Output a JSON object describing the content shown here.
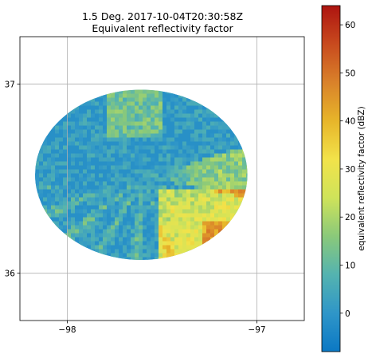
{
  "chart_data": {
    "type": "heatmap",
    "title": "1.5 Deg. 2017-10-04T20:30:58Z",
    "subtitle": "Equivalent reflectivity factor",
    "xlabel": "",
    "ylabel": "",
    "xlim": [
      -98.25,
      -96.75
    ],
    "ylim": [
      35.75,
      37.25
    ],
    "x_ticks": [
      -98,
      -97
    ],
    "x_tick_labels": [
      "−98",
      "−97"
    ],
    "y_ticks": [
      36,
      37
    ],
    "y_tick_labels": [
      "36",
      "37"
    ],
    "grid": true,
    "radar_center": {
      "lon": -97.61,
      "lat": 36.52
    },
    "radar_extent": {
      "lon_half_width": 0.56,
      "lat_half_height": 0.45
    },
    "colorbar": {
      "label": "equivalent reflectivity factor (dBZ)",
      "vmin": -8,
      "vmax": 64,
      "ticks": [
        0,
        10,
        20,
        30,
        40,
        50,
        60
      ],
      "tick_labels": [
        "0",
        "10",
        "20",
        "30",
        "40",
        "50",
        "60"
      ],
      "colors": [
        "#0b78c4",
        "#2f96c8",
        "#54b3b0",
        "#8ac97a",
        "#cfe35a",
        "#f2e34a",
        "#e7b52a",
        "#d9822a",
        "#c84a1e",
        "#ad1410"
      ]
    }
  }
}
